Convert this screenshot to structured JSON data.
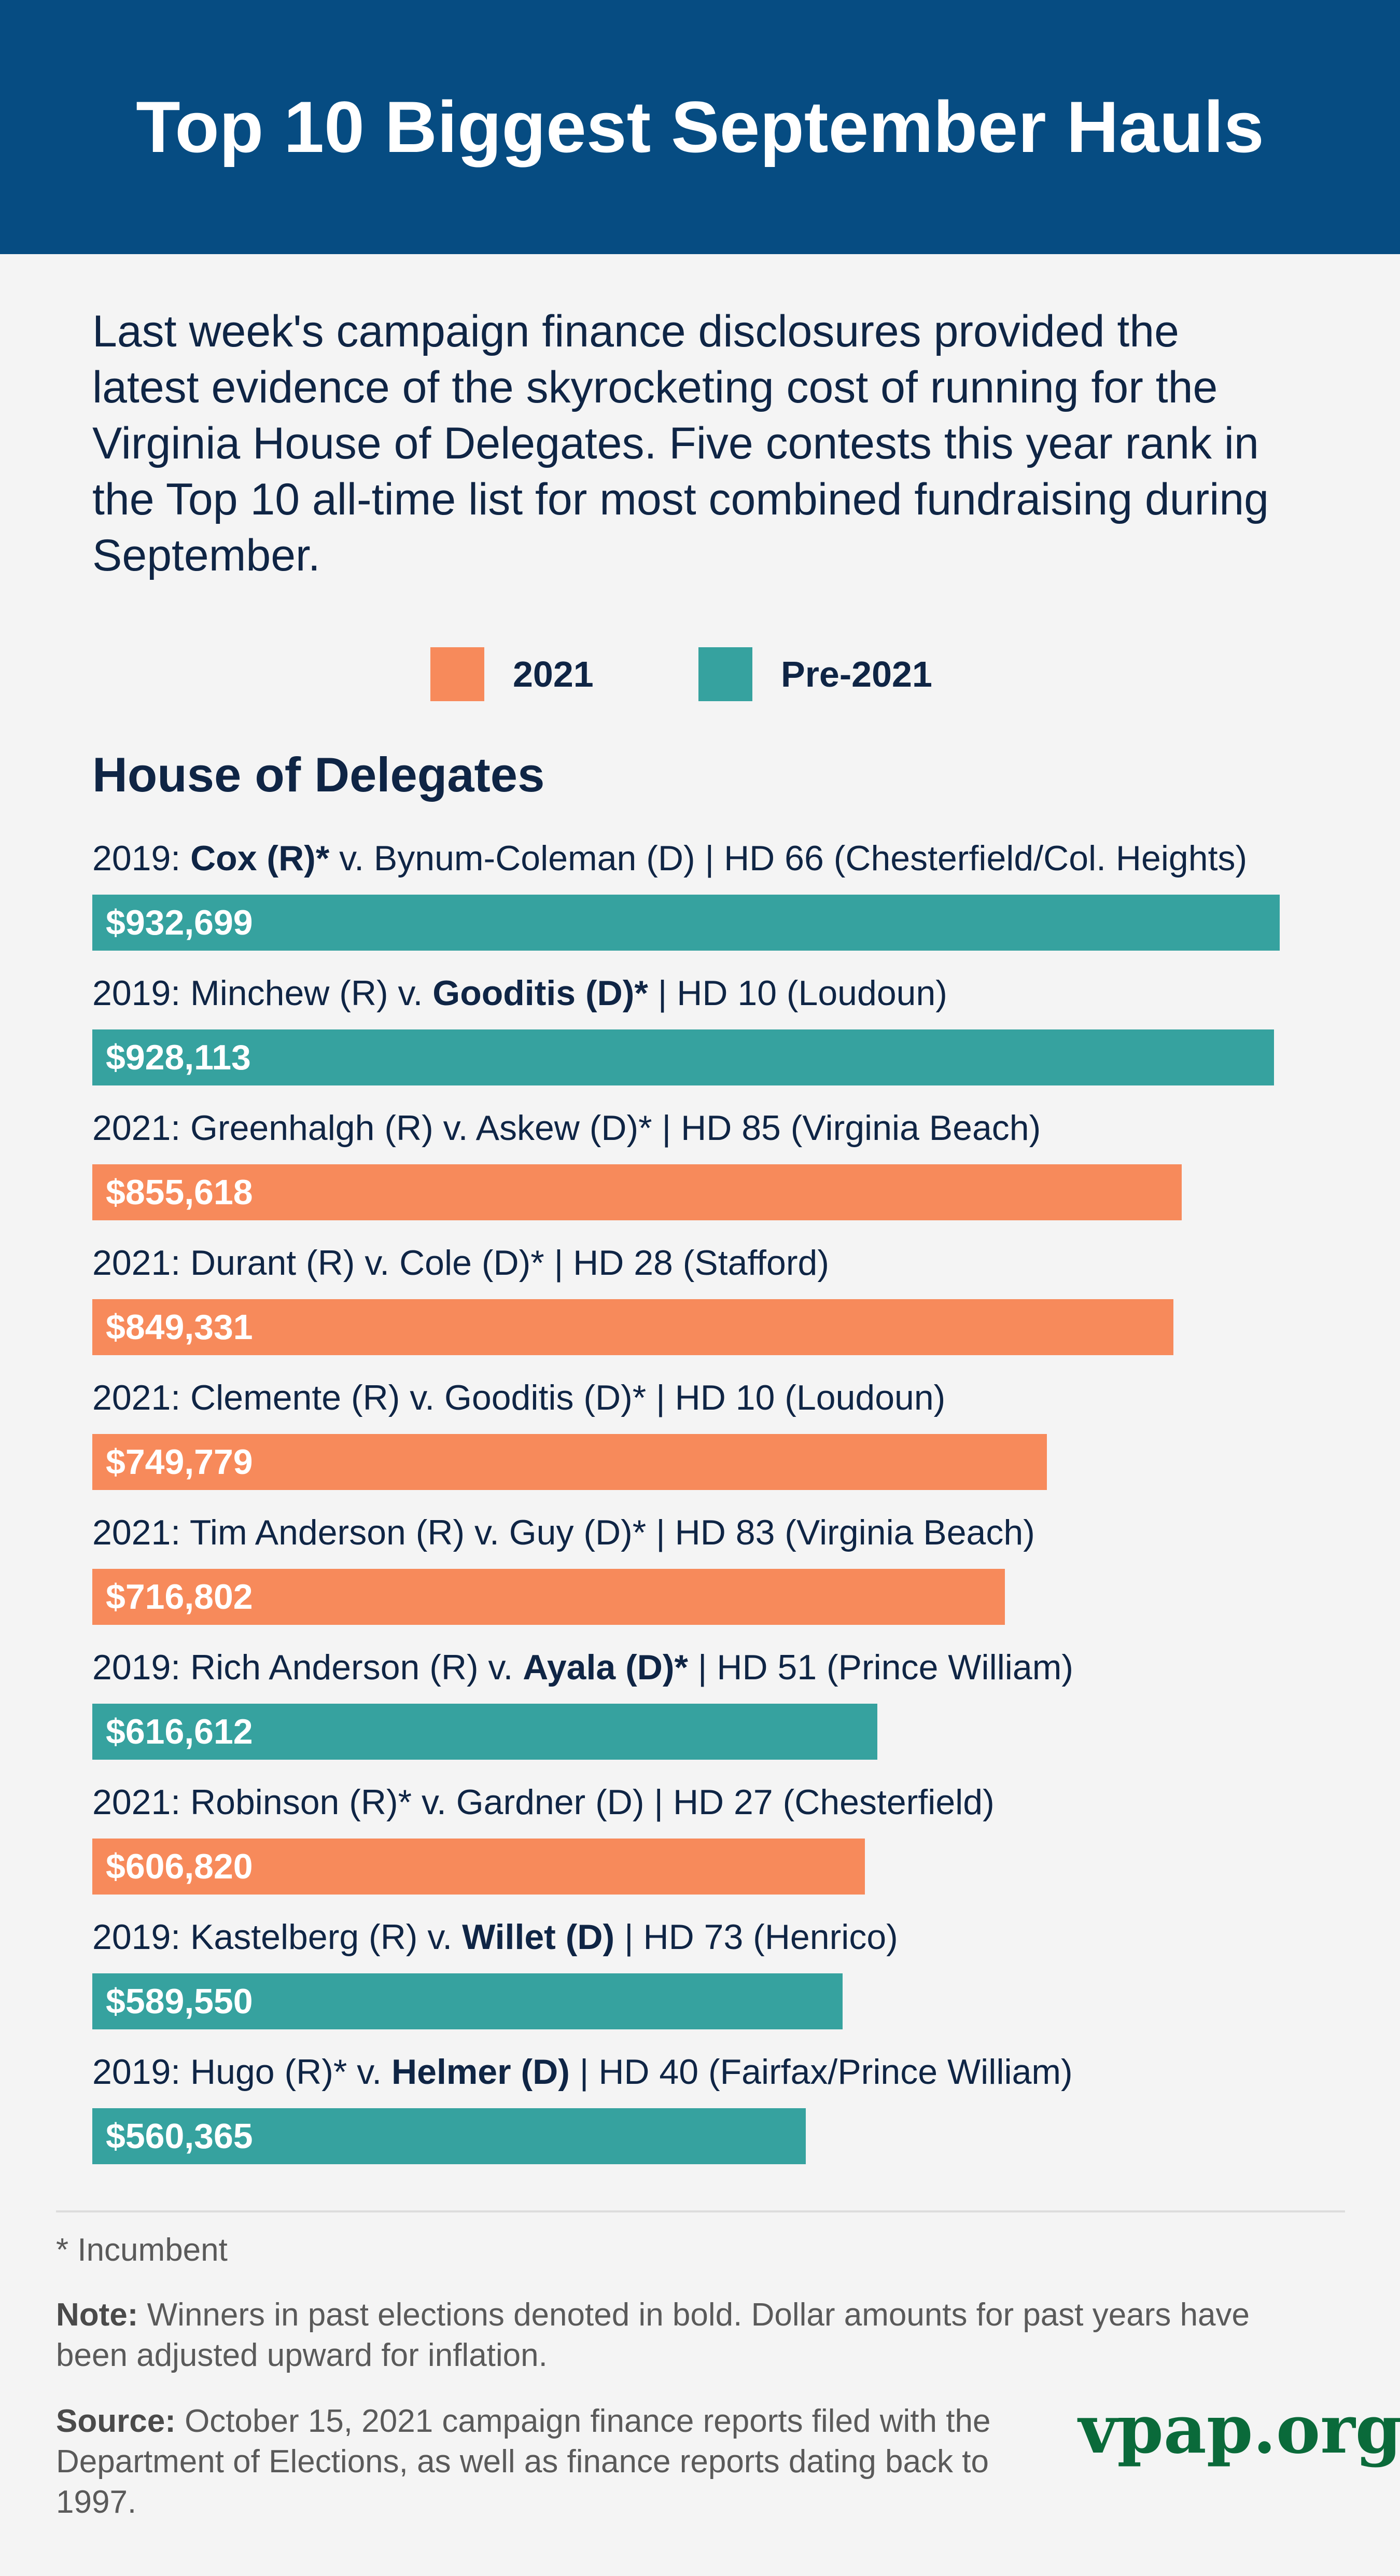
{
  "header": {
    "title": "Top 10 Biggest September Hauls"
  },
  "intro": {
    "text": "Last week's campaign finance disclosures provided the latest evidence of the skyrocketing cost of running for the Virginia House of Delegates. Five contests this year rank in the Top 10 all-time list for most combined fundraising during September."
  },
  "legend": {
    "items": [
      {
        "label": "2021",
        "color": "#f78a5b"
      },
      {
        "label": "Pre-2021",
        "color": "#36a29f"
      }
    ]
  },
  "section": {
    "title": "House of Delegates"
  },
  "chart_data": {
    "type": "bar",
    "orientation": "horizontal",
    "title": "Top 10 Biggest September Hauls",
    "subtitle": "House of Delegates",
    "xlabel": "",
    "ylabel": "",
    "xlim": [
      0,
      1000000
    ],
    "colors": {
      "2021": "#f78a5b",
      "Pre-2021": "#36a29f"
    },
    "categories": [
      [
        {
          "t": "2019: "
        },
        {
          "t": "Cox (R)*",
          "b": true
        },
        {
          "t": " v. Bynum-Coleman (D) | HD 66 (Chesterfield/Col. Heights)"
        }
      ],
      [
        {
          "t": "2019: Minchew (R) v. "
        },
        {
          "t": "Gooditis (D)*",
          "b": true
        },
        {
          "t": "  | HD 10 (Loudoun)"
        }
      ],
      [
        {
          "t": "2021: Greenhalgh (R) v. Askew (D)* | HD 85 (Virginia Beach)"
        }
      ],
      [
        {
          "t": "2021: Durant (R) v. Cole (D)* | HD 28 (Stafford)"
        }
      ],
      [
        {
          "t": "2021: Clemente (R) v. Gooditis (D)* | HD 10 (Loudoun)"
        }
      ],
      [
        {
          "t": "2021: Tim Anderson (R) v. Guy (D)* | HD 83 (Virginia Beach)"
        }
      ],
      [
        {
          "t": "2019: Rich Anderson (R) v. "
        },
        {
          "t": "Ayala (D)*",
          "b": true
        },
        {
          "t": " | HD 51 (Prince William)"
        }
      ],
      [
        {
          "t": "2021: Robinson (R)* v. Gardner (D) | HD 27 (Chesterfield)"
        }
      ],
      [
        {
          "t": "2019: Kastelberg (R) v. "
        },
        {
          "t": "Willet (D)",
          "b": true
        },
        {
          "t": " | HD 73 (Henrico)"
        }
      ],
      [
        {
          "t": "2019: Hugo (R)* v. "
        },
        {
          "t": "Helmer (D)",
          "b": true
        },
        {
          "t": " | HD 40 (Fairfax/Prince William)"
        }
      ]
    ],
    "values": [
      932699,
      928113,
      855618,
      849331,
      749779,
      716802,
      616612,
      606820,
      589550,
      560365
    ],
    "value_labels": [
      "$932,699",
      "$928,113",
      "$855,618",
      "$849,331",
      "$749,779",
      "$716,802",
      "$616,612",
      "$606,820",
      "$589,550",
      "$560,365"
    ],
    "groups": [
      "Pre-2021",
      "Pre-2021",
      "2021",
      "2021",
      "2021",
      "2021",
      "Pre-2021",
      "2021",
      "Pre-2021",
      "Pre-2021"
    ]
  },
  "footer": {
    "incumbent": "* Incumbent",
    "note_label": "Note:",
    "note_text": " Winners in past elections denoted in bold. Dollar amounts for past years have been adjusted upward for inflation.",
    "source_label": "Source:",
    "source_text": " October 15, 2021 campaign finance reports filed with the Department of Elections, as well as finance reports dating back to 1997.",
    "logo": "vpap.org"
  }
}
